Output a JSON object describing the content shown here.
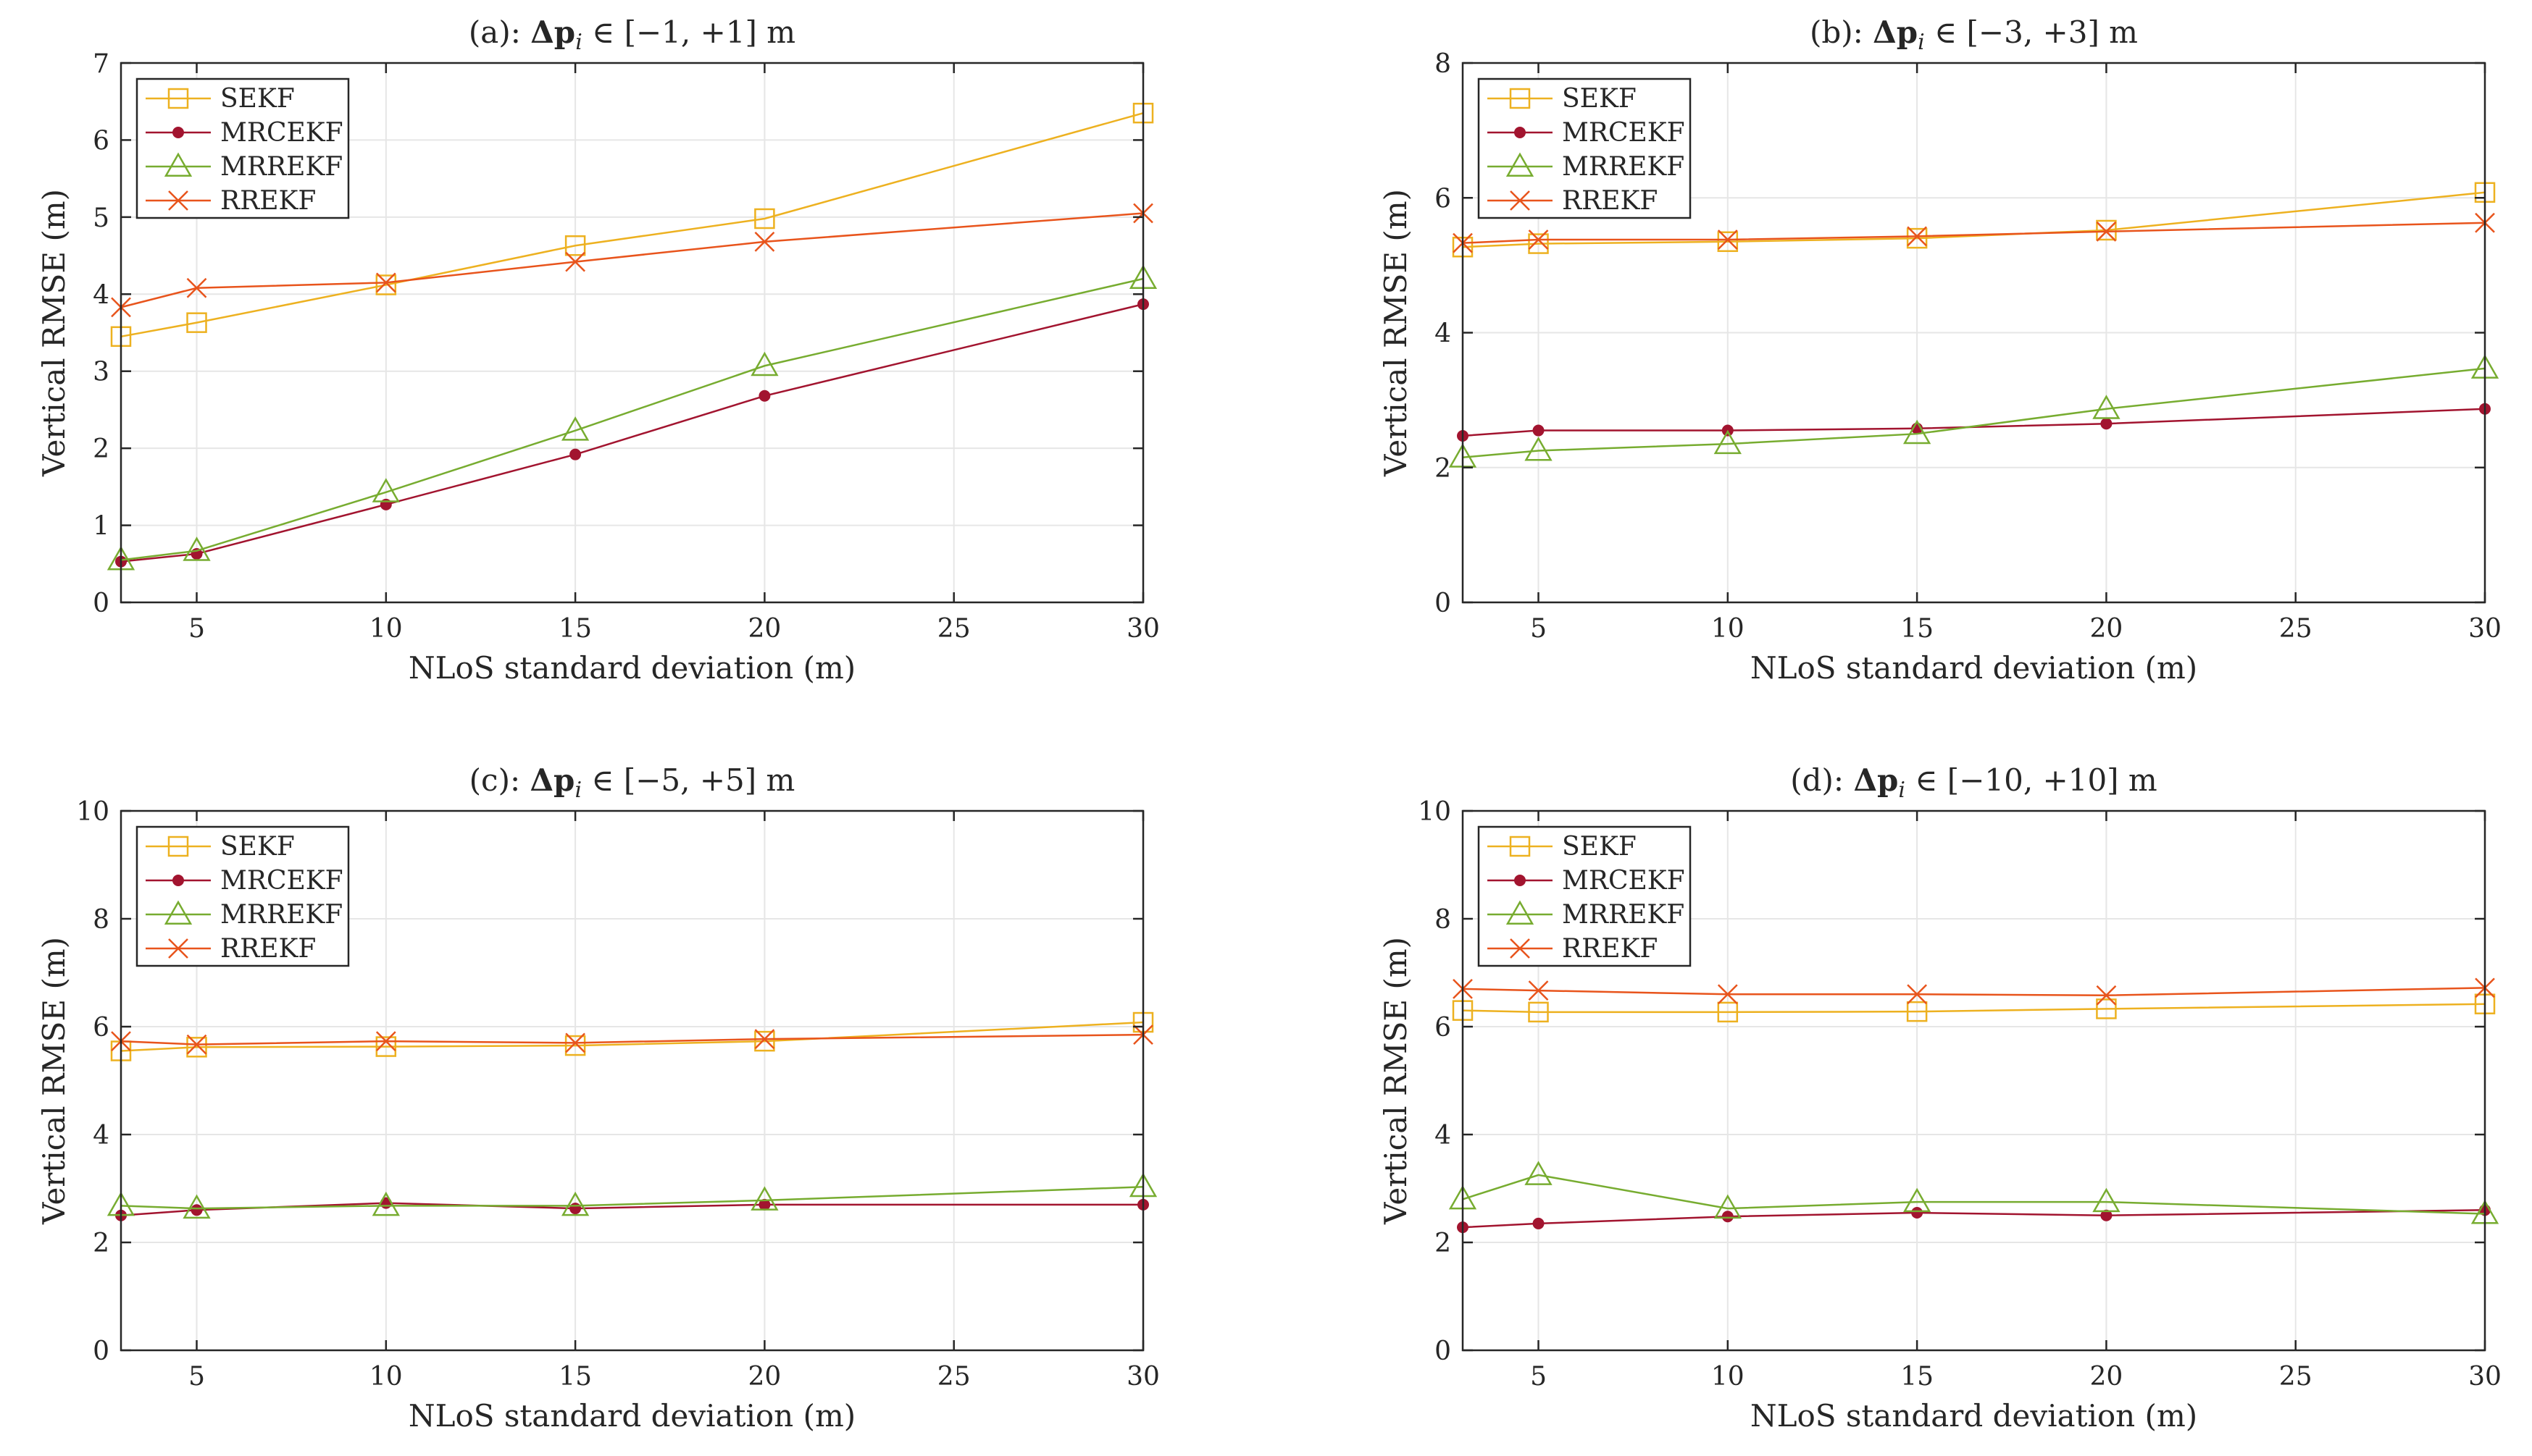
{
  "figure": {
    "colors": {
      "SEKF": "#EDB120",
      "MRCEKF": "#A2142F",
      "MRREKF": "#77AC30",
      "RREKF": "#E8541C",
      "grid": "#e6e6e6",
      "axis": "#262626"
    }
  },
  "chart_data": [
    {
      "type": "line",
      "title_prefix": "(a): ",
      "title_symbol": "Δp",
      "title_sub": "i",
      "title_range": " ∈ [−1, +1] m",
      "xlabel": "NLoS standard deviation (m)",
      "ylabel": "Vertical RMSE (m)",
      "xlim": [
        3,
        30
      ],
      "ylim": [
        0,
        7
      ],
      "xticks": [
        5,
        10,
        15,
        20,
        25,
        30
      ],
      "yticks": [
        0,
        1,
        2,
        3,
        4,
        5,
        6,
        7
      ],
      "grid": true,
      "legend_position": "top-left",
      "x": [
        3,
        5,
        10,
        15,
        20,
        30
      ],
      "series": [
        {
          "name": "SEKF",
          "marker": "square",
          "values": [
            3.45,
            3.63,
            4.12,
            4.63,
            4.98,
            6.35
          ]
        },
        {
          "name": "MRCEKF",
          "marker": "dot",
          "values": [
            0.53,
            0.63,
            1.27,
            1.92,
            2.68,
            3.87
          ]
        },
        {
          "name": "MRREKF",
          "marker": "triangle",
          "values": [
            0.55,
            0.67,
            1.43,
            2.23,
            3.07,
            4.2
          ]
        },
        {
          "name": "RREKF",
          "marker": "x",
          "values": [
            3.83,
            4.08,
            4.15,
            4.42,
            4.68,
            5.05
          ]
        }
      ]
    },
    {
      "type": "line",
      "title_prefix": "(b): ",
      "title_symbol": "Δp",
      "title_sub": "i",
      "title_range": " ∈ [−3, +3] m",
      "xlabel": "NLoS standard deviation (m)",
      "ylabel": "Vertical RMSE (m)",
      "xlim": [
        3,
        30
      ],
      "ylim": [
        0,
        8
      ],
      "xticks": [
        5,
        10,
        15,
        20,
        25,
        30
      ],
      "yticks": [
        0,
        2,
        4,
        6,
        8
      ],
      "grid": true,
      "legend_position": "top-left",
      "x": [
        3,
        5,
        10,
        15,
        20,
        30
      ],
      "series": [
        {
          "name": "SEKF",
          "marker": "square",
          "values": [
            5.27,
            5.32,
            5.35,
            5.4,
            5.52,
            6.08
          ]
        },
        {
          "name": "MRCEKF",
          "marker": "dot",
          "values": [
            2.47,
            2.55,
            2.55,
            2.58,
            2.65,
            2.87
          ]
        },
        {
          "name": "MRREKF",
          "marker": "triangle",
          "values": [
            2.15,
            2.25,
            2.35,
            2.5,
            2.87,
            3.47
          ]
        },
        {
          "name": "RREKF",
          "marker": "x",
          "values": [
            5.33,
            5.38,
            5.38,
            5.43,
            5.5,
            5.63
          ]
        }
      ]
    },
    {
      "type": "line",
      "title_prefix": "(c): ",
      "title_symbol": "Δp",
      "title_sub": "i",
      "title_range": " ∈ [−5, +5] m",
      "xlabel": "NLoS standard deviation (m)",
      "ylabel": "Vertical RMSE (m)",
      "xlim": [
        3,
        30
      ],
      "ylim": [
        0,
        10
      ],
      "xticks": [
        5,
        10,
        15,
        20,
        25,
        30
      ],
      "yticks": [
        0,
        2,
        4,
        6,
        8,
        10
      ],
      "grid": true,
      "legend_position": "top-left",
      "x": [
        3,
        5,
        10,
        15,
        20,
        30
      ],
      "series": [
        {
          "name": "SEKF",
          "marker": "square",
          "values": [
            5.55,
            5.62,
            5.63,
            5.65,
            5.73,
            6.08
          ]
        },
        {
          "name": "MRCEKF",
          "marker": "dot",
          "values": [
            2.5,
            2.6,
            2.73,
            2.63,
            2.7,
            2.7
          ]
        },
        {
          "name": "MRREKF",
          "marker": "triangle",
          "values": [
            2.68,
            2.63,
            2.68,
            2.68,
            2.78,
            3.03
          ]
        },
        {
          "name": "RREKF",
          "marker": "x",
          "values": [
            5.73,
            5.67,
            5.73,
            5.7,
            5.77,
            5.85
          ]
        }
      ]
    },
    {
      "type": "line",
      "title_prefix": "(d): ",
      "title_symbol": "Δp",
      "title_sub": "i",
      "title_range": " ∈ [−10, +10] m",
      "xlabel": "NLoS standard deviation (m)",
      "ylabel": "Vertical RMSE (m)",
      "xlim": [
        3,
        30
      ],
      "ylim": [
        0,
        10
      ],
      "xticks": [
        5,
        10,
        15,
        20,
        25,
        30
      ],
      "yticks": [
        0,
        2,
        4,
        6,
        8,
        10
      ],
      "grid": true,
      "legend_position": "top-left",
      "x": [
        3,
        5,
        10,
        15,
        20,
        30
      ],
      "series": [
        {
          "name": "SEKF",
          "marker": "square",
          "values": [
            6.3,
            6.27,
            6.27,
            6.28,
            6.33,
            6.42
          ]
        },
        {
          "name": "MRCEKF",
          "marker": "dot",
          "values": [
            2.28,
            2.35,
            2.48,
            2.55,
            2.5,
            2.6
          ]
        },
        {
          "name": "MRREKF",
          "marker": "triangle",
          "values": [
            2.8,
            3.25,
            2.63,
            2.75,
            2.75,
            2.53
          ]
        },
        {
          "name": "RREKF",
          "marker": "x",
          "values": [
            6.7,
            6.67,
            6.6,
            6.6,
            6.58,
            6.72
          ]
        }
      ]
    }
  ]
}
